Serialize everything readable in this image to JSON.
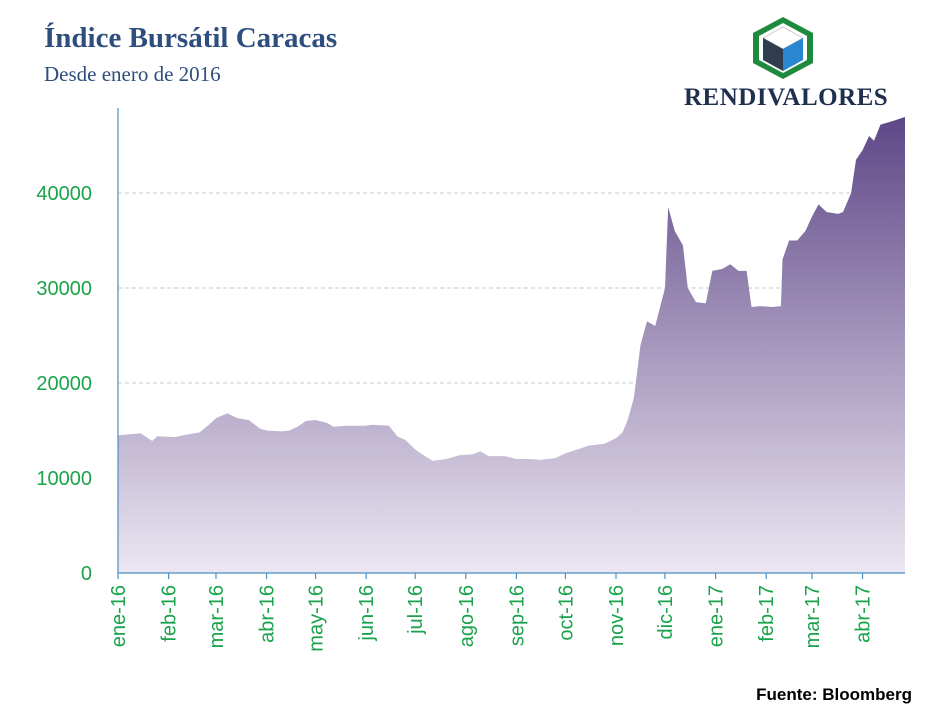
{
  "header": {
    "title": "Índice Bursátil Caracas",
    "subtitle": "Desde enero de 2016"
  },
  "brand": {
    "name": "RENDIVALORES",
    "logo_colors": {
      "frame": "#1e8a3e",
      "left": "#2f3d4f",
      "right": "#2a86cf",
      "top": "#ffffff"
    }
  },
  "footer": {
    "source": "Fuente: Bloomberg"
  },
  "colors": {
    "fill_top": "#5e4787",
    "fill_bottom": "#ece7f2",
    "axis": "#4a90c2",
    "tick_labels": "#1aa34a",
    "grid": "#c8c8c8"
  },
  "chart_data": {
    "type": "area",
    "title": "Índice Bursátil Caracas",
    "subtitle": "Desde enero de 2016",
    "xlabel": "",
    "ylabel": "",
    "ylim": [
      0,
      50000
    ],
    "yticks": [
      0,
      10000,
      20000,
      30000,
      40000
    ],
    "grid": "horizontal dashed",
    "xticks": [
      "ene-16",
      "feb-16",
      "mar-16",
      "abr-16",
      "may-16",
      "jun-16",
      "jul-16",
      "ago-16",
      "sep-16",
      "oct-16",
      "nov-16",
      "dic-16",
      "ene-17",
      "feb-17",
      "mar-17",
      "abr-17"
    ],
    "x_start": "2016-01-01",
    "x_end": "2017-04-27",
    "series": [
      {
        "points": [
          [
            "2016-01-01",
            14500
          ],
          [
            "2016-01-15",
            14700
          ],
          [
            "2016-01-22",
            13900
          ],
          [
            "2016-01-25",
            14400
          ],
          [
            "2016-02-05",
            14300
          ],
          [
            "2016-02-10",
            14500
          ],
          [
            "2016-02-20",
            14800
          ],
          [
            "2016-02-25",
            15500
          ],
          [
            "2016-03-01",
            16300
          ],
          [
            "2016-03-08",
            16800
          ],
          [
            "2016-03-14",
            16300
          ],
          [
            "2016-03-21",
            16100
          ],
          [
            "2016-03-28",
            15200
          ],
          [
            "2016-04-01",
            15000
          ],
          [
            "2016-04-10",
            14900
          ],
          [
            "2016-04-15",
            15000
          ],
          [
            "2016-04-20",
            15400
          ],
          [
            "2016-04-25",
            16000
          ],
          [
            "2016-05-01",
            16100
          ],
          [
            "2016-05-08",
            15800
          ],
          [
            "2016-05-12",
            15400
          ],
          [
            "2016-05-20",
            15500
          ],
          [
            "2016-05-31",
            15500
          ],
          [
            "2016-06-05",
            15600
          ],
          [
            "2016-06-15",
            15500
          ],
          [
            "2016-06-20",
            14400
          ],
          [
            "2016-06-25",
            14000
          ],
          [
            "2016-07-01",
            13000
          ],
          [
            "2016-07-08",
            12200
          ],
          [
            "2016-07-12",
            11800
          ],
          [
            "2016-07-20",
            12000
          ],
          [
            "2016-07-28",
            12400
          ],
          [
            "2016-08-05",
            12500
          ],
          [
            "2016-08-10",
            12800
          ],
          [
            "2016-08-15",
            12300
          ],
          [
            "2016-08-25",
            12300
          ],
          [
            "2016-09-01",
            12000
          ],
          [
            "2016-09-10",
            12000
          ],
          [
            "2016-09-15",
            11900
          ],
          [
            "2016-09-20",
            12000
          ],
          [
            "2016-09-25",
            12100
          ],
          [
            "2016-10-01",
            12600
          ],
          [
            "2016-10-10",
            13100
          ],
          [
            "2016-10-15",
            13400
          ],
          [
            "2016-10-25",
            13600
          ],
          [
            "2016-11-01",
            14200
          ],
          [
            "2016-11-05",
            14800
          ],
          [
            "2016-11-08",
            16000
          ],
          [
            "2016-11-12",
            18500
          ],
          [
            "2016-11-16",
            24000
          ],
          [
            "2016-11-20",
            26500
          ],
          [
            "2016-11-25",
            26000
          ],
          [
            "2016-11-28",
            28000
          ],
          [
            "2016-12-01",
            30000
          ],
          [
            "2016-12-03",
            38500
          ],
          [
            "2016-12-07",
            36000
          ],
          [
            "2016-12-12",
            34500
          ],
          [
            "2016-12-15",
            30000
          ],
          [
            "2016-12-20",
            28500
          ],
          [
            "2016-12-26",
            28400
          ],
          [
            "2016-12-30",
            31800
          ],
          [
            "2017-01-05",
            32000
          ],
          [
            "2017-01-10",
            32500
          ],
          [
            "2017-01-15",
            31800
          ],
          [
            "2017-01-20",
            31800
          ],
          [
            "2017-01-23",
            28000
          ],
          [
            "2017-01-28",
            28100
          ],
          [
            "2017-02-05",
            28000
          ],
          [
            "2017-02-10",
            28100
          ],
          [
            "2017-02-11",
            33000
          ],
          [
            "2017-02-15",
            35000
          ],
          [
            "2017-02-20",
            35000
          ],
          [
            "2017-02-25",
            36000
          ],
          [
            "2017-03-01",
            37500
          ],
          [
            "2017-03-05",
            38800
          ],
          [
            "2017-03-10",
            38000
          ],
          [
            "2017-03-17",
            37800
          ],
          [
            "2017-03-20",
            38000
          ],
          [
            "2017-03-25",
            40000
          ],
          [
            "2017-03-28",
            43500
          ],
          [
            "2017-04-01",
            44500
          ],
          [
            "2017-04-05",
            46000
          ],
          [
            "2017-04-08",
            45500
          ],
          [
            "2017-04-12",
            47200
          ],
          [
            "2017-04-20",
            47600
          ],
          [
            "2017-04-27",
            48000
          ]
        ]
      }
    ]
  }
}
